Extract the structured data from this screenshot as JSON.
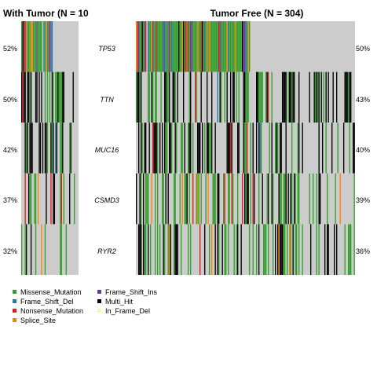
{
  "chart_data": {
    "type": "heatmap",
    "groups": [
      {
        "key": "with_tumor",
        "title": "With Tumor (N = 10"
      },
      {
        "key": "tumor_free",
        "title": "Tumor Free (N = 304)"
      }
    ],
    "genes": [
      {
        "name": "TP53",
        "with_tumor_pct": "52%",
        "tumor_free_pct": "50%"
      },
      {
        "name": "TTN",
        "with_tumor_pct": "50%",
        "tumor_free_pct": "43%"
      },
      {
        "name": "MUC16",
        "with_tumor_pct": "42%",
        "tumor_free_pct": "40%"
      },
      {
        "name": "CSMD3",
        "with_tumor_pct": "37%",
        "tumor_free_pct": "39%"
      },
      {
        "name": "RYR2",
        "with_tumor_pct": "32%",
        "tumor_free_pct": "36%"
      }
    ],
    "legend": [
      {
        "label": "Missense_Mutation",
        "color": "#33a02c"
      },
      {
        "label": "Frame_Shift_Ins",
        "color": "#6a3d9a"
      },
      {
        "label": "Frame_Shift_Del",
        "color": "#1f78b4"
      },
      {
        "label": "Multi_Hit",
        "color": "#000000"
      },
      {
        "label": "Nonsense_Mutation",
        "color": "#e31a1c"
      },
      {
        "label": "In_Frame_Del",
        "color": "#ffff99"
      },
      {
        "label": "Splice_Site",
        "color": "#ff7f00"
      }
    ],
    "background_color": "#cccccc",
    "grid": false
  }
}
